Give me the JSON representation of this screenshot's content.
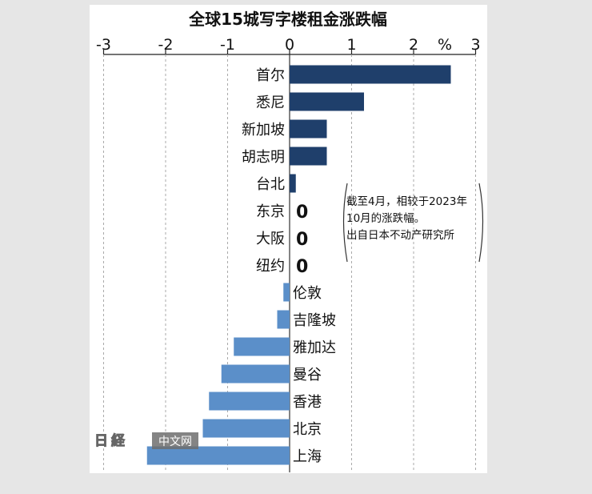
{
  "chart_data": {
    "type": "bar",
    "orientation": "horizontal",
    "title": "全球15城写字楼租金涨跌幅",
    "unit_label": "%",
    "xlim": [
      -3,
      3
    ],
    "ticks": [
      "-3",
      "-2",
      "-1",
      "0",
      "1",
      "2",
      "3"
    ],
    "grid": true,
    "categories": [
      "首尔",
      "悉尼",
      "新加坡",
      "胡志明",
      "台北",
      "东京",
      "大阪",
      "纽约",
      "伦敦",
      "吉隆坡",
      "雅加达",
      "曼谷",
      "香港",
      "北京",
      "上海"
    ],
    "values": [
      2.6,
      1.2,
      0.6,
      0.6,
      0.1,
      0,
      0,
      0,
      -0.1,
      -0.2,
      -0.9,
      -1.1,
      -1.3,
      -1.4,
      -2.3
    ],
    "zero_value_labels": [
      "0",
      "0",
      "0"
    ],
    "annotation": [
      "截至4月，相较于2023年",
      "10月的涨跌幅。",
      "出自日本不动产研究所"
    ],
    "colors": {
      "positive": "#1f3f6b",
      "negative": "#5b8fc9",
      "grid": "#aaaaaa",
      "text": "#111111"
    }
  },
  "watermark": {
    "logo_text": "日経",
    "site": "中文网"
  }
}
